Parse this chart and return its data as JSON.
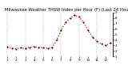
{
  "title": "Milwaukee Weather THSW Index per Hour (F) (Last 24 Hours)",
  "y_values": [
    28,
    25,
    24,
    26,
    25,
    27,
    28,
    27,
    26,
    25,
    27,
    40,
    58,
    72,
    80,
    85,
    82,
    72,
    58,
    45,
    38,
    33,
    30,
    35
  ],
  "ylim": [
    10,
    90
  ],
  "yticks": [
    10,
    20,
    30,
    40,
    50,
    60,
    70,
    80,
    90
  ],
  "ytick_labels": [
    "1",
    "2",
    "3",
    "4",
    "5",
    "6",
    "7",
    "8",
    "9"
  ],
  "num_points": 24,
  "line_color": "#ff0000",
  "dot_color": "#000000",
  "bg_color": "#ffffff",
  "grid_color": "#888888",
  "title_fontsize": 3.8,
  "tick_fontsize": 3.0,
  "vgrid_positions": [
    0,
    4,
    8,
    12,
    16,
    20,
    23
  ],
  "x_tick_labels": [
    "1",
    "",
    "",
    "",
    "2",
    "",
    "",
    "",
    "3",
    "",
    "",
    "",
    "4",
    "",
    "",
    "",
    "5",
    "",
    "",
    "",
    "6",
    "",
    "",
    "7"
  ]
}
